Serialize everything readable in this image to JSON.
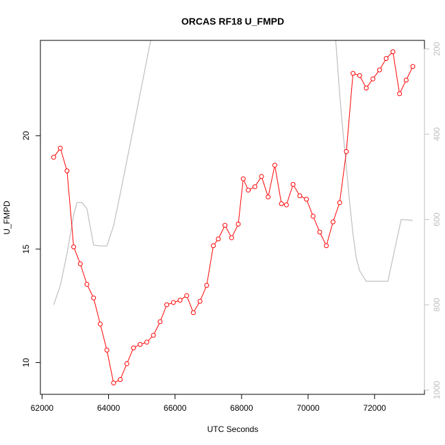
{
  "chart_data": {
    "type": "line",
    "title": "ORCAS RF18 U_FMPD",
    "xlabel": "UTC Seconds",
    "ylabel": "U_FMPD",
    "xlim": [
      61950,
      73500
    ],
    "ylim": [
      8.6,
      24.2
    ],
    "y2lim": [
      1010,
      180
    ],
    "x_ticks": [
      62000,
      64000,
      66000,
      68000,
      70000,
      72000
    ],
    "y_ticks": [
      10,
      15,
      20
    ],
    "y2_ticks": [
      200,
      400,
      600,
      800,
      1000
    ],
    "grid": false,
    "legend": "none",
    "colors": {
      "series": "#ff0000",
      "secondary": "#bebebe",
      "axis": "#000000"
    },
    "series": [
      {
        "x": [
          62350,
          62550,
          62750,
          62950,
          63150,
          63350,
          63550,
          63750,
          63950,
          64150,
          64350,
          64550,
          64750,
          64950,
          65150,
          65350,
          65550,
          65750,
          65950,
          66150,
          66350,
          66550,
          66750,
          66950,
          67150,
          67300,
          67500,
          67700,
          67900,
          68050,
          68200,
          68400,
          68600,
          68800,
          69000,
          69200,
          69350,
          69550,
          69750,
          69950,
          70150,
          70350,
          70550,
          70750,
          70950,
          71150,
          71350,
          71550,
          71750,
          71950,
          72150,
          72350,
          72550,
          72750,
          72950,
          73150
        ],
        "values": [
          19.05,
          19.45,
          18.45,
          15.1,
          14.35,
          13.45,
          12.85,
          11.7,
          10.55,
          9.1,
          9.25,
          9.95,
          10.65,
          10.8,
          10.9,
          11.2,
          11.8,
          12.55,
          12.65,
          12.75,
          12.95,
          12.2,
          12.7,
          13.4,
          15.15,
          15.45,
          16.05,
          15.5,
          16.1,
          18.1,
          17.6,
          17.75,
          18.2,
          17.3,
          18.7,
          17.0,
          16.95,
          17.85,
          17.35,
          17.2,
          16.45,
          15.75,
          15.15,
          16.2,
          17.05,
          19.3,
          22.75,
          22.65,
          22.1,
          22.5,
          22.9,
          23.4,
          23.7,
          21.85,
          22.45,
          23.05
        ]
      },
      {
        "axis": "right",
        "segments": [
          {
            "x": [
              62350,
              62550,
              62750,
              62950,
              63050,
              63200,
              63350,
              63550,
              63750,
              63950,
              64150,
              64350,
              64550,
              64750,
              64950,
              65150,
              65350,
              65500
            ],
            "values": [
              800,
              755,
              680,
              590,
              560,
              560,
              575,
              660,
              662,
              662,
              615,
              540,
              462,
              384,
              305,
              226,
              147,
              96
            ]
          },
          {
            "x": [
              66550,
              66750,
              66850
            ],
            "values": [
              100,
              100,
              96
            ]
          },
          {
            "x": [
              68800,
              68800
            ],
            "values": [
              100,
              96
            ]
          },
          {
            "x": [
              70750,
              70850,
              70950,
              71050,
              71150,
              71250,
              71350,
              71450,
              71550,
              71750,
              71950,
              72150,
              72400,
              72600,
              72800,
              73150
            ],
            "values": [
              96,
              200,
              305,
              395,
              475,
              560,
              634,
              690,
              720,
              745,
              745,
              745,
              745,
              672,
              600,
              602
            ]
          }
        ]
      }
    ]
  }
}
